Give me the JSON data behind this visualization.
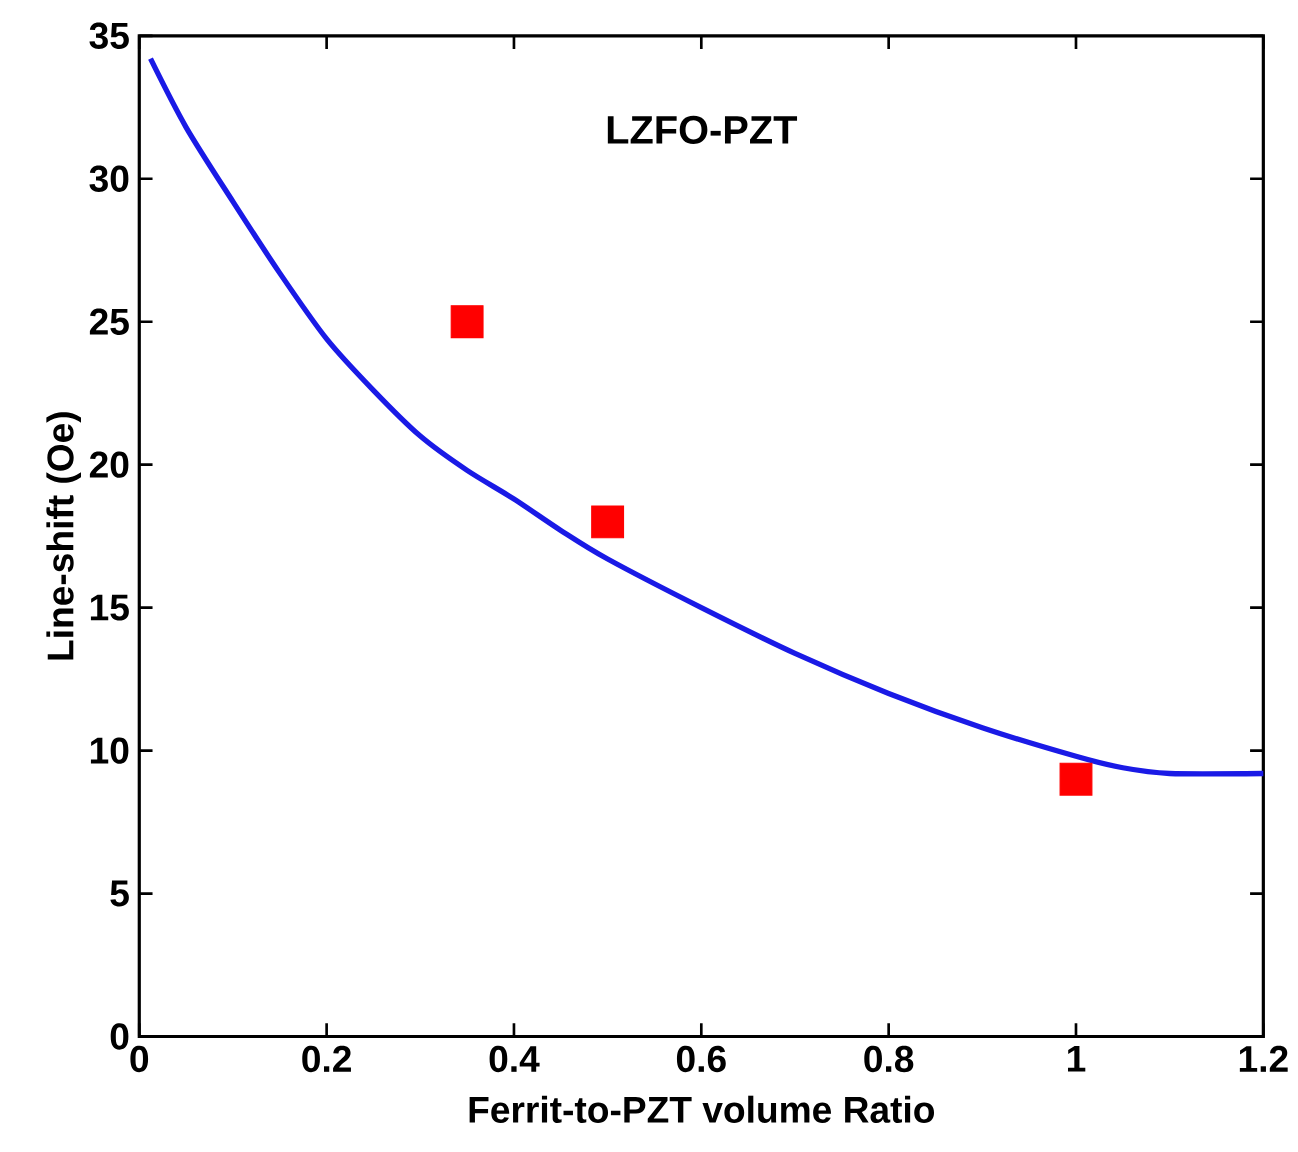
{
  "chart_data": {
    "type": "line",
    "title": "LZFO-PZT",
    "xlabel": "Ferrit-to-PZT volume Ratio",
    "ylabel": "Line-shift (Oe)",
    "xlim": [
      0,
      1.2
    ],
    "ylim": [
      0,
      35
    ],
    "xticks": [
      0,
      0.2,
      0.4,
      0.6,
      0.8,
      1,
      1.2
    ],
    "yticks": [
      0,
      5,
      10,
      15,
      20,
      25,
      30,
      35
    ],
    "grid": false,
    "series": [
      {
        "type": "line",
        "color": "#1a1ae6",
        "marker": "none",
        "line_style": "solid",
        "x": [
          0.012,
          0.05,
          0.1,
          0.15,
          0.2,
          0.25,
          0.3,
          0.35,
          0.4,
          0.45,
          0.5,
          0.6,
          0.7,
          0.8,
          0.9,
          1.0,
          1.05,
          1.1,
          1.2
        ],
        "values": [
          34.2,
          31.8,
          29.2,
          26.7,
          24.4,
          22.6,
          21.0,
          19.8,
          18.8,
          17.7,
          16.7,
          15.0,
          13.4,
          12.0,
          10.8,
          9.8,
          9.4,
          9.2,
          9.2
        ]
      },
      {
        "type": "scatter",
        "color": "#ff0000",
        "marker": "square",
        "x": [
          0.35,
          0.5,
          1.0
        ],
        "values": [
          25,
          18,
          9
        ]
      }
    ]
  }
}
